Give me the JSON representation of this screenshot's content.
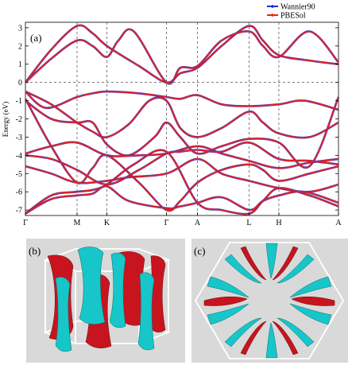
{
  "chart_data": {
    "type": "line",
    "panel_label": "(a)",
    "ylabel": "Energy (eV)",
    "ylim": [
      -7.3,
      3.3
    ],
    "yticks": [
      3,
      2,
      1,
      0,
      -1,
      -2,
      -3,
      -4,
      -5,
      -6,
      -7
    ],
    "fermi_level": 0,
    "grid": "vertical dashed at high-symmetry points",
    "legend_position": "top-right",
    "kpoints": [
      {
        "label": "Γ",
        "x": 0
      },
      {
        "label": "M",
        "x": 1.0
      },
      {
        "label": "K",
        "x": 1.577
      },
      {
        "label": "Γ",
        "x": 2.732
      },
      {
        "label": "A",
        "x": 3.332
      },
      {
        "label": "L",
        "x": 4.332
      },
      {
        "label": "H",
        "x": 4.909
      },
      {
        "label": "A",
        "x": 6.064
      }
    ],
    "series": [
      {
        "name": "Wannier90",
        "color": "#1f2fd6"
      },
      {
        "name": "PBESol",
        "color": "#e8231c"
      }
    ],
    "bands": [
      {
        "x": [
          0,
          0.5,
          1.0,
          1.3,
          1.577,
          2.2,
          2.732,
          3.0,
          3.332,
          3.8,
          4.332,
          4.6,
          4.909,
          5.5,
          6.064
        ],
        "y": [
          0.0,
          1.8,
          3.1,
          2.7,
          2.0,
          0.9,
          0.0,
          0.5,
          0.8,
          2.0,
          3.1,
          2.3,
          1.5,
          1.2,
          1.0
        ]
      },
      {
        "x": [
          0,
          0.5,
          1.0,
          1.3,
          1.577,
          1.8,
          2.1,
          2.732,
          3.0,
          3.332,
          3.8,
          4.332,
          4.6,
          4.909,
          5.5,
          6.064
        ],
        "y": [
          0.0,
          1.3,
          2.3,
          2.0,
          1.4,
          2.3,
          2.8,
          0.0,
          0.8,
          0.9,
          2.3,
          2.8,
          2.0,
          1.4,
          2.8,
          1.1
        ]
      },
      {
        "x": [
          0,
          0.4,
          1.0,
          1.3,
          1.577,
          2.2,
          2.732,
          3.0,
          3.332,
          3.8,
          4.332,
          4.909,
          5.4,
          6.064
        ],
        "y": [
          -0.5,
          -1.4,
          -0.8,
          -0.6,
          -0.5,
          -0.6,
          -0.8,
          -0.9,
          -0.7,
          -1.2,
          -1.3,
          -1.2,
          -1.0,
          -1.5
        ]
      },
      {
        "x": [
          0,
          0.5,
          1.0,
          1.3,
          1.577,
          2.0,
          2.4,
          2.732,
          3.0,
          3.332,
          3.8,
          4.332,
          4.6,
          4.909,
          5.5,
          6.064
        ],
        "y": [
          -0.5,
          -1.2,
          -2.2,
          -2.7,
          -3.0,
          -2.3,
          -1.0,
          -1.0,
          -2.5,
          -3.0,
          -2.5,
          -1.6,
          -2.2,
          -2.8,
          -3.0,
          -2.2
        ]
      },
      {
        "x": [
          0,
          0.5,
          1.0,
          1.3,
          1.577,
          2.0,
          2.5,
          2.732,
          3.0,
          3.332,
          3.8,
          4.332,
          4.909,
          5.5,
          6.064
        ],
        "y": [
          -1.0,
          -2.0,
          -2.2,
          -2.2,
          -3.4,
          -4.0,
          -3.0,
          -2.2,
          -3.0,
          -3.9,
          -3.5,
          -3.1,
          -3.3,
          -4.6,
          -0.8
        ]
      },
      {
        "x": [
          0,
          0.5,
          1.0,
          1.577,
          2.2,
          2.732,
          3.332,
          3.8,
          4.332,
          4.909,
          5.5,
          6.064
        ],
        "y": [
          -3.9,
          -3.5,
          -3.3,
          -4.0,
          -4.0,
          -3.9,
          -3.5,
          -3.9,
          -4.3,
          -4.7,
          -4.4,
          -4.2
        ]
      },
      {
        "x": [
          0,
          0.5,
          1.0,
          1.577,
          2.2,
          2.732,
          3.0,
          3.332,
          3.8,
          4.332,
          4.909,
          5.5,
          6.064
        ],
        "y": [
          -4.0,
          -4.2,
          -4.8,
          -5.6,
          -4.8,
          -3.9,
          -3.8,
          -3.7,
          -3.8,
          -3.3,
          -4.2,
          -4.3,
          -4.5
        ]
      },
      {
        "x": [
          0,
          0.5,
          1.0,
          1.3,
          1.577,
          2.2,
          2.732,
          3.0,
          3.332,
          3.8,
          4.332,
          4.6,
          4.909,
          5.5,
          6.064
        ],
        "y": [
          -0.9,
          -3.5,
          -5.5,
          -4.7,
          -4.0,
          -5.5,
          -7.0,
          -6.5,
          -5.5,
          -4.8,
          -4.5,
          -4.8,
          -5.4,
          -5.0,
          -4.6
        ]
      },
      {
        "x": [
          0,
          0.5,
          1.0,
          1.577,
          2.0,
          2.732,
          3.332,
          3.8,
          4.332,
          4.909,
          5.5,
          6.064
        ],
        "y": [
          -4.6,
          -5.0,
          -5.5,
          -5.4,
          -5.2,
          -5.0,
          -4.2,
          -5.0,
          -5.4,
          -5.8,
          -6.0,
          -5.6
        ]
      },
      {
        "x": [
          0,
          0.5,
          1.0,
          1.3,
          1.577,
          2.1,
          2.732,
          3.332,
          3.8,
          4.332,
          4.6,
          4.909,
          5.5,
          6.064
        ],
        "y": [
          -7.2,
          -6.2,
          -6.0,
          -5.9,
          -5.6,
          -4.5,
          -3.8,
          -6.6,
          -7.0,
          -7.2,
          -6.5,
          -5.8,
          -6.2,
          -6.8
        ]
      },
      {
        "x": [
          0,
          0.5,
          1.0,
          1.3,
          1.577,
          2.0,
          2.732,
          3.0,
          3.332,
          3.8,
          4.332,
          4.6,
          4.909,
          5.4,
          6.064
        ],
        "y": [
          -7.2,
          -6.4,
          -6.2,
          -6.1,
          -5.7,
          -6.5,
          -6.9,
          -6.8,
          -6.6,
          -6.3,
          -7.0,
          -6.5,
          -6.2,
          -6.0,
          -6.6
        ]
      }
    ]
  },
  "panels": [
    {
      "label": "(b)"
    },
    {
      "label": "(c)"
    }
  ],
  "colors": {
    "surface_red": "#c8141e",
    "surface_cyan": "#16c6c8",
    "panel_bg": "#d9d9d9"
  }
}
